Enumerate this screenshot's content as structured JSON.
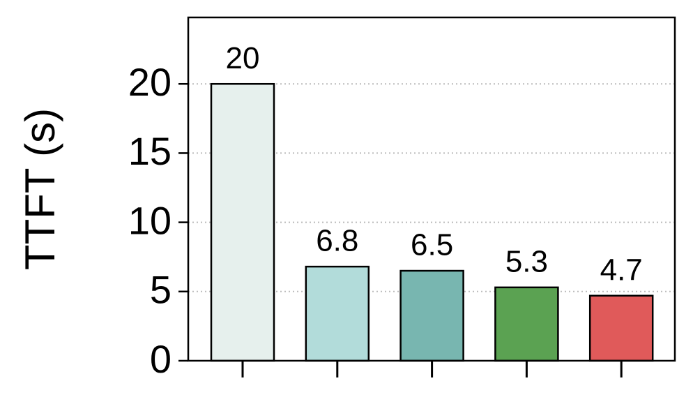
{
  "chart_data": {
    "type": "bar",
    "y_label": "TTFT (s)",
    "categories": [
      null,
      null,
      null,
      null,
      null
    ],
    "values": [
      20,
      6.8,
      6.5,
      5.3,
      4.7
    ],
    "colors": [
      "#e6f0ed",
      "#b2dcda",
      "#78b6b0",
      "#5ba252",
      "#e05a5a"
    ],
    "ylim": [
      0,
      24.8
    ],
    "yticks": [
      0,
      5,
      10,
      15,
      20
    ],
    "grid": true
  }
}
